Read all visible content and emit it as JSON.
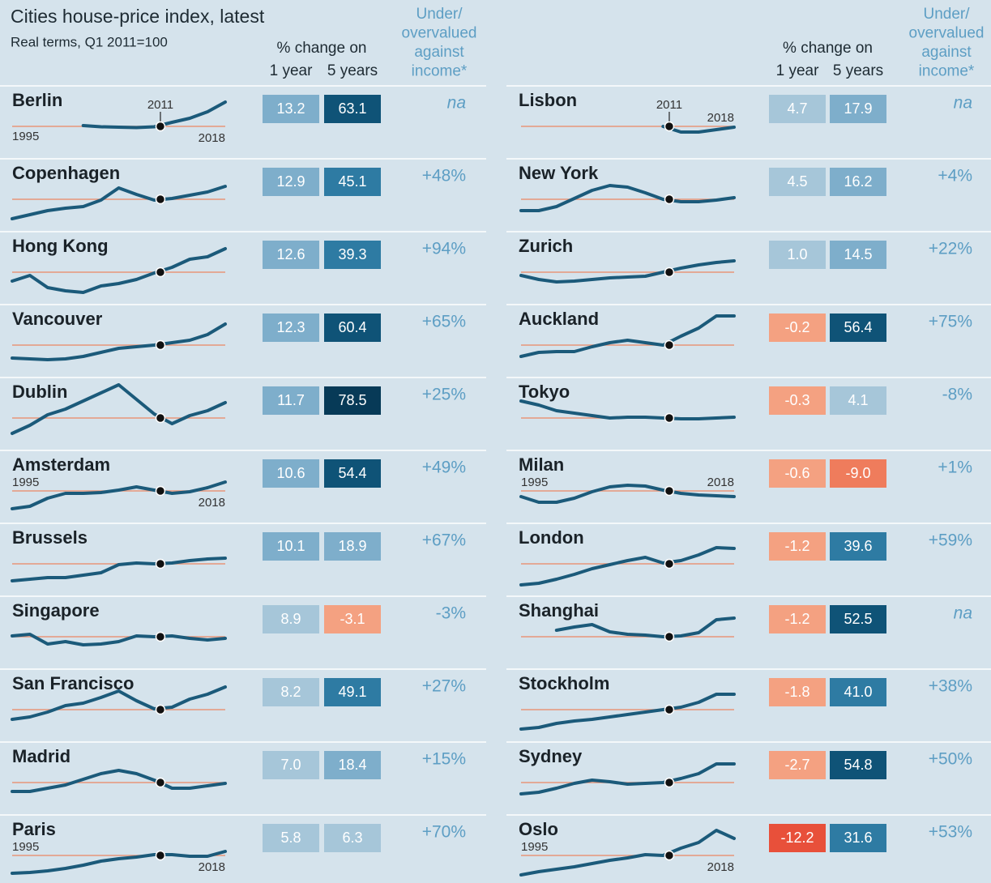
{
  "title": "Cities house-price index, latest",
  "subtitle": "Real terms, Q1 2011=100",
  "header": {
    "change": "% change on",
    "one_year": "1 year",
    "five_years": "5 years",
    "valuation": [
      "Under/",
      "overvalued",
      "against",
      "income*"
    ]
  },
  "xlim": [
    1995,
    2018
  ],
  "base_year": 2011,
  "baseline": 100,
  "spark_ylim": [
    40,
    190
  ],
  "line_color": "#1b5a7a",
  "baseline_color": "#e8967a",
  "columns": [
    [
      {
        "name": "Berlin",
        "spark": [
          null,
          null,
          null,
          null,
          102,
          99,
          98,
          97,
          99,
          110,
          120,
          136,
          160
        ],
        "one_year": {
          "text": "13.2",
          "color": "#7eaecb"
        },
        "five_years": {
          "text": "63.1",
          "color": "#0f5377"
        },
        "valuation": "na",
        "year_labels": [
          1995,
          2011,
          2018
        ]
      },
      {
        "name": "Copenhagen",
        "spark": [
          52,
          62,
          72,
          78,
          82,
          98,
          128,
          112,
          98,
          102,
          110,
          118,
          132
        ],
        "one_year": {
          "text": "12.9",
          "color": "#7eaecb"
        },
        "five_years": {
          "text": "45.1",
          "color": "#2e7ba3"
        },
        "valuation": "+48%",
        "year_labels": []
      },
      {
        "name": "Hong Kong",
        "spark": [
          78,
          92,
          62,
          54,
          50,
          66,
          72,
          82,
          98,
          112,
          132,
          138,
          158
        ],
        "one_year": {
          "text": "12.6",
          "color": "#7eaecb"
        },
        "five_years": {
          "text": "39.3",
          "color": "#2e7ba3"
        },
        "valuation": "+94%",
        "year_labels": []
      },
      {
        "name": "Vancouver",
        "spark": [
          68,
          66,
          64,
          66,
          72,
          82,
          92,
          96,
          100,
          106,
          112,
          126,
          152
        ],
        "one_year": {
          "text": "12.3",
          "color": "#7eaecb"
        },
        "five_years": {
          "text": "60.4",
          "color": "#0f5377"
        },
        "valuation": "+65%",
        "year_labels": []
      },
      {
        "name": "Dublin",
        "spark": [
          62,
          82,
          108,
          122,
          142,
          162,
          182,
          146,
          110,
          86,
          106,
          118,
          138
        ],
        "one_year": {
          "text": "11.7",
          "color": "#7eaecb"
        },
        "five_years": {
          "text": "78.5",
          "color": "#073a57"
        },
        "valuation": "+25%",
        "year_labels": []
      },
      {
        "name": "Amsterdam",
        "spark": [
          56,
          62,
          82,
          94,
          94,
          96,
          102,
          110,
          102,
          94,
          98,
          108,
          122
        ],
        "one_year": {
          "text": "10.6",
          "color": "#7eaecb"
        },
        "five_years": {
          "text": "54.4",
          "color": "#0f5377"
        },
        "valuation": "+49%",
        "year_labels": [
          1995,
          2018
        ]
      },
      {
        "name": "Brussels",
        "spark": [
          58,
          62,
          66,
          66,
          72,
          78,
          98,
          102,
          100,
          102,
          108,
          112,
          114
        ],
        "one_year": {
          "text": "10.1",
          "color": "#7eaecb"
        },
        "five_years": {
          "text": "18.9",
          "color": "#7eaecb"
        },
        "valuation": "+67%",
        "year_labels": []
      },
      {
        "name": "Singapore",
        "spark": [
          102,
          106,
          82,
          88,
          80,
          82,
          88,
          102,
          100,
          102,
          96,
          92,
          96
        ],
        "one_year": {
          "text": "8.9",
          "color": "#a6c6d9"
        },
        "five_years": {
          "text": "-3.1",
          "color": "#f4a181"
        },
        "valuation": "-3%",
        "year_labels": []
      },
      {
        "name": "San Francisco",
        "spark": [
          76,
          82,
          94,
          110,
          116,
          130,
          146,
          122,
          102,
          106,
          126,
          138,
          156
        ],
        "one_year": {
          "text": "8.2",
          "color": "#a6c6d9"
        },
        "five_years": {
          "text": "49.1",
          "color": "#2e7ba3"
        },
        "valuation": "+27%",
        "year_labels": []
      },
      {
        "name": "Madrid",
        "spark": [
          78,
          78,
          86,
          94,
          108,
          122,
          130,
          122,
          106,
          86,
          86,
          92,
          98
        ],
        "one_year": {
          "text": "7.0",
          "color": "#a6c6d9"
        },
        "five_years": {
          "text": "18.4",
          "color": "#7eaecb"
        },
        "valuation": "+15%",
        "year_labels": []
      },
      {
        "name": "Paris",
        "spark": [
          56,
          58,
          62,
          68,
          76,
          86,
          92,
          96,
          102,
          102,
          98,
          98,
          110
        ],
        "one_year": {
          "text": "5.8",
          "color": "#a6c6d9"
        },
        "five_years": {
          "text": "6.3",
          "color": "#a6c6d9"
        },
        "valuation": "+70%",
        "year_labels": [
          1995,
          2018
        ]
      }
    ],
    [
      {
        "name": "Lisbon",
        "spark": [
          null,
          null,
          null,
          null,
          null,
          null,
          null,
          null,
          100,
          86,
          86,
          92,
          98
        ],
        "one_year": {
          "text": "4.7",
          "color": "#a6c6d9"
        },
        "five_years": {
          "text": "17.9",
          "color": "#7eaecb"
        },
        "valuation": "na",
        "year_labels": [
          2011,
          2018
        ]
      },
      {
        "name": "New York",
        "spark": [
          72,
          72,
          82,
          102,
          122,
          134,
          130,
          116,
          100,
          94,
          94,
          98,
          104
        ],
        "one_year": {
          "text": "4.5",
          "color": "#a6c6d9"
        },
        "five_years": {
          "text": "16.2",
          "color": "#7eaecb"
        },
        "valuation": "+4%",
        "year_labels": []
      },
      {
        "name": "Zurich",
        "spark": [
          92,
          82,
          76,
          78,
          82,
          86,
          88,
          90,
          100,
          110,
          118,
          124,
          128
        ],
        "one_year": {
          "text": "1.0",
          "color": "#a6c6d9"
        },
        "five_years": {
          "text": "14.5",
          "color": "#7eaecb"
        },
        "valuation": "+22%",
        "year_labels": []
      },
      {
        "name": "Auckland",
        "spark": [
          72,
          82,
          84,
          84,
          96,
          106,
          112,
          106,
          100,
          122,
          142,
          172,
          172
        ],
        "one_year": {
          "text": "-0.2",
          "color": "#f4a181"
        },
        "five_years": {
          "text": "56.4",
          "color": "#0f5377"
        },
        "valuation": "+75%",
        "year_labels": []
      },
      {
        "name": "Tokyo",
        "spark": [
          142,
          132,
          118,
          112,
          106,
          100,
          102,
          102,
          100,
          98,
          98,
          100,
          102
        ],
        "one_year": {
          "text": "-0.3",
          "color": "#f4a181"
        },
        "five_years": {
          "text": "4.1",
          "color": "#a6c6d9"
        },
        "valuation": "-8%",
        "year_labels": []
      },
      {
        "name": "Milan",
        "spark": [
          86,
          72,
          72,
          82,
          98,
          110,
          114,
          112,
          102,
          94,
          90,
          88,
          86
        ],
        "one_year": {
          "text": "-0.6",
          "color": "#f4a181"
        },
        "five_years": {
          "text": "-9.0",
          "color": "#ef7c5c"
        },
        "valuation": "+1%",
        "year_labels": [
          1995,
          2018
        ]
      },
      {
        "name": "London",
        "spark": [
          48,
          52,
          62,
          74,
          88,
          98,
          108,
          116,
          102,
          108,
          122,
          140,
          138
        ],
        "one_year": {
          "text": "-1.2",
          "color": "#f4a181"
        },
        "five_years": {
          "text": "39.6",
          "color": "#2e7ba3"
        },
        "valuation": "+59%",
        "year_labels": []
      },
      {
        "name": "Shanghai",
        "spark": [
          null,
          null,
          116,
          124,
          130,
          112,
          106,
          104,
          100,
          102,
          110,
          142,
          146
        ],
        "one_year": {
          "text": "-1.2",
          "color": "#f4a181"
        },
        "five_years": {
          "text": "52.5",
          "color": "#0f5377"
        },
        "valuation": "na",
        "year_labels": []
      },
      {
        "name": "Stockholm",
        "spark": [
          52,
          56,
          66,
          72,
          76,
          82,
          88,
          94,
          100,
          106,
          118,
          138,
          138
        ],
        "one_year": {
          "text": "-1.8",
          "color": "#f4a181"
        },
        "five_years": {
          "text": "41.0",
          "color": "#2e7ba3"
        },
        "valuation": "+38%",
        "year_labels": []
      },
      {
        "name": "Sydney",
        "spark": [
          72,
          76,
          86,
          98,
          106,
          102,
          96,
          98,
          100,
          110,
          122,
          146,
          146
        ],
        "one_year": {
          "text": "-2.7",
          "color": "#f4a181"
        },
        "five_years": {
          "text": "54.8",
          "color": "#0f5377"
        },
        "valuation": "+50%",
        "year_labels": []
      },
      {
        "name": "Oslo",
        "spark": [
          52,
          60,
          66,
          72,
          80,
          88,
          94,
          102,
          100,
          118,
          132,
          162,
          142
        ],
        "one_year": {
          "text": "-12.2",
          "color": "#e8503a"
        },
        "five_years": {
          "text": "31.6",
          "color": "#2e7ba3"
        },
        "valuation": "+53%",
        "year_labels": [
          1995,
          2018
        ]
      }
    ]
  ]
}
